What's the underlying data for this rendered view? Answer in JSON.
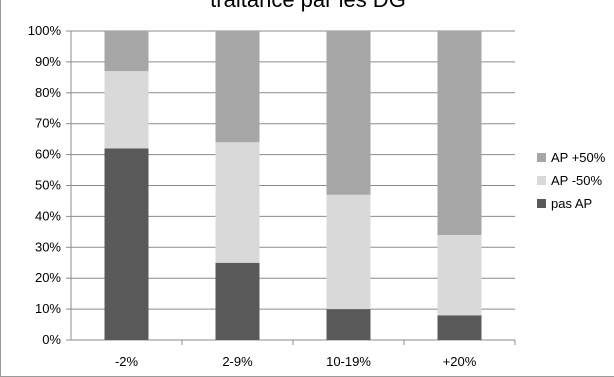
{
  "chart_data": {
    "type": "bar",
    "stacked": true,
    "title": "traitance par les DG",
    "categories": [
      "-2%",
      "2-9%",
      "10-19%",
      "+20%"
    ],
    "series": [
      {
        "name": "pas AP",
        "color": "#595959",
        "values": [
          62,
          25,
          10,
          8
        ]
      },
      {
        "name": "AP -50%",
        "color": "#d9d9d9",
        "values": [
          25,
          39,
          37,
          26
        ]
      },
      {
        "name": "AP +50%",
        "color": "#a6a6a6",
        "values": [
          13,
          36,
          53,
          66
        ]
      }
    ],
    "ylim": [
      0,
      100
    ],
    "yticks": [
      "0%",
      "10%",
      "20%",
      "30%",
      "40%",
      "50%",
      "60%",
      "70%",
      "80%",
      "90%",
      "100%"
    ],
    "grid": true,
    "legend_position": "right"
  }
}
